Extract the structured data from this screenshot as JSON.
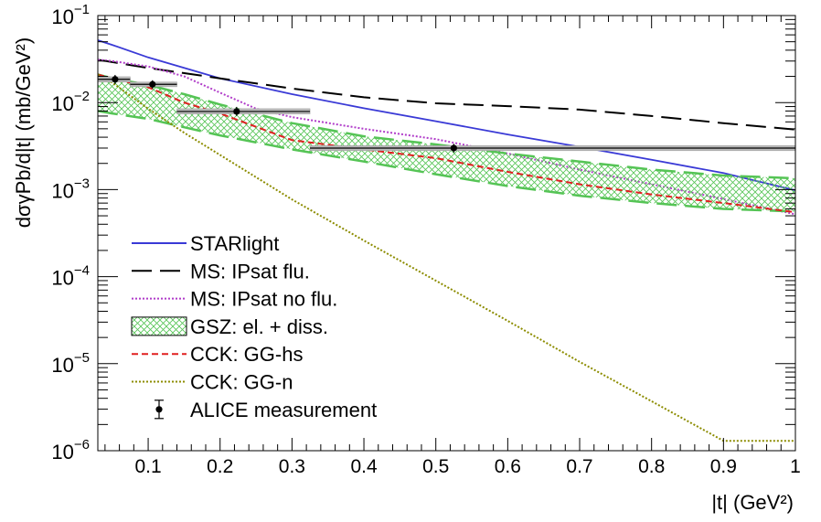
{
  "chart_data": {
    "type": "line",
    "xlabel": "|t| (GeV²)",
    "ylabel": "dσγPb/d|t| (mb/GeV²)",
    "x_scale": "linear",
    "y_scale": "log",
    "xlim": [
      0.03,
      1.0
    ],
    "ylim": [
      1e-06,
      0.1
    ],
    "x_ticks": [
      0.1,
      0.2,
      0.3,
      0.4,
      0.5,
      0.6,
      0.7,
      0.8,
      0.9,
      1
    ],
    "x_tick_labels": [
      "0.1",
      "0.2",
      "0.3",
      "0.4",
      "0.5",
      "0.6",
      "0.7",
      "0.8",
      "0.9",
      "1"
    ],
    "y_ticks": [
      1e-06,
      1e-05,
      0.0001,
      0.001,
      0.01,
      0.1
    ],
    "y_tick_labels": [
      {
        "base": "10",
        "exp": "−6"
      },
      {
        "base": "10",
        "exp": "−5"
      },
      {
        "base": "10",
        "exp": "−4"
      },
      {
        "base": "10",
        "exp": "−3"
      },
      {
        "base": "10",
        "exp": "−2"
      },
      {
        "base": "10",
        "exp": "−1"
      }
    ],
    "grid": false,
    "legend_placement": "lower-left",
    "series": [
      {
        "name": "STARlight",
        "color": "#3a3ad6",
        "style": "solid",
        "x": [
          0.03,
          0.05,
          0.1,
          0.15,
          0.2,
          0.3,
          0.4,
          0.5,
          0.6,
          0.7,
          0.8,
          0.9,
          1.0
        ],
        "y": [
          0.052,
          0.046,
          0.033,
          0.025,
          0.019,
          0.0125,
          0.0086,
          0.0061,
          0.0043,
          0.0031,
          0.0022,
          0.00155,
          0.00098
        ]
      },
      {
        "name": "MS: IPsat flu.",
        "color": "#000000",
        "style": "longdash",
        "x": [
          0.03,
          0.1,
          0.2,
          0.3,
          0.4,
          0.5,
          0.6,
          0.7,
          0.8,
          0.9,
          1.0
        ],
        "y": [
          0.031,
          0.025,
          0.019,
          0.0145,
          0.0115,
          0.0098,
          0.0091,
          0.0083,
          0.007,
          0.0058,
          0.0049
        ]
      },
      {
        "name": "MS: IPsat no flu.",
        "color": "#b03cc9",
        "style": "dotted",
        "x": [
          0.03,
          0.05,
          0.1,
          0.15,
          0.2,
          0.25,
          0.3,
          0.4,
          0.5,
          0.6,
          0.7,
          0.8,
          0.9,
          1.0
        ],
        "y": [
          0.031,
          0.03,
          0.026,
          0.02,
          0.013,
          0.0085,
          0.0068,
          0.005,
          0.0038,
          0.0026,
          0.0017,
          0.00115,
          0.00078,
          0.00052
        ]
      },
      {
        "name": "GSZ: el. + diss.",
        "color": "#55c455",
        "style": "band",
        "x": [
          0.03,
          0.05,
          0.1,
          0.15,
          0.2,
          0.3,
          0.4,
          0.5,
          0.6,
          0.7,
          0.8,
          0.9,
          1.0
        ],
        "y_high": [
          0.021,
          0.019,
          0.016,
          0.0125,
          0.0095,
          0.0058,
          0.0041,
          0.0033,
          0.0026,
          0.0021,
          0.0017,
          0.00145,
          0.00135
        ],
        "y_low": [
          0.008,
          0.0075,
          0.0065,
          0.0052,
          0.0042,
          0.0029,
          0.0021,
          0.0015,
          0.0011,
          0.00085,
          0.0007,
          0.0006,
          0.00056
        ]
      },
      {
        "name": "CCK: GG-hs",
        "color": "#e02020",
        "style": "dashed",
        "x": [
          0.03,
          0.05,
          0.1,
          0.15,
          0.2,
          0.3,
          0.4,
          0.5,
          0.6,
          0.7,
          0.8,
          0.9,
          1.0
        ],
        "y": [
          0.021,
          0.019,
          0.015,
          0.01,
          0.0075,
          0.0037,
          0.0029,
          0.0023,
          0.0016,
          0.00115,
          0.00088,
          0.0007,
          0.00055
        ]
      },
      {
        "name": "CCK: GG-n",
        "color": "#8c8c00",
        "style": "dotted",
        "x": [
          0.03,
          0.05,
          0.1,
          0.15,
          0.2,
          0.3,
          0.4,
          0.5,
          0.6,
          0.7,
          0.8,
          0.9,
          1.0
        ],
        "y": [
          0.021,
          0.017,
          0.0085,
          0.0045,
          0.0025,
          0.00077,
          0.00026,
          9e-05,
          3.1e-05,
          1.05e-05,
          3.7e-06,
          1.3e-06,
          1.3e-06
        ]
      }
    ],
    "measurement": {
      "name": "ALICE measurement",
      "color": "#000000",
      "points": [
        {
          "x": 0.054,
          "y": 0.0185,
          "x_low": 0.03,
          "x_high": 0.075,
          "y_low": 0.0172,
          "y_high": 0.0198
        },
        {
          "x": 0.106,
          "y": 0.0162,
          "x_low": 0.075,
          "x_high": 0.14,
          "y_low": 0.0152,
          "y_high": 0.0172
        },
        {
          "x": 0.223,
          "y": 0.0079,
          "x_low": 0.14,
          "x_high": 0.325,
          "y_low": 0.0074,
          "y_high": 0.0085
        },
        {
          "x": 0.525,
          "y": 0.003,
          "x_low": 0.325,
          "x_high": 1.0,
          "y_low": 0.0028,
          "y_high": 0.0032
        }
      ]
    }
  }
}
